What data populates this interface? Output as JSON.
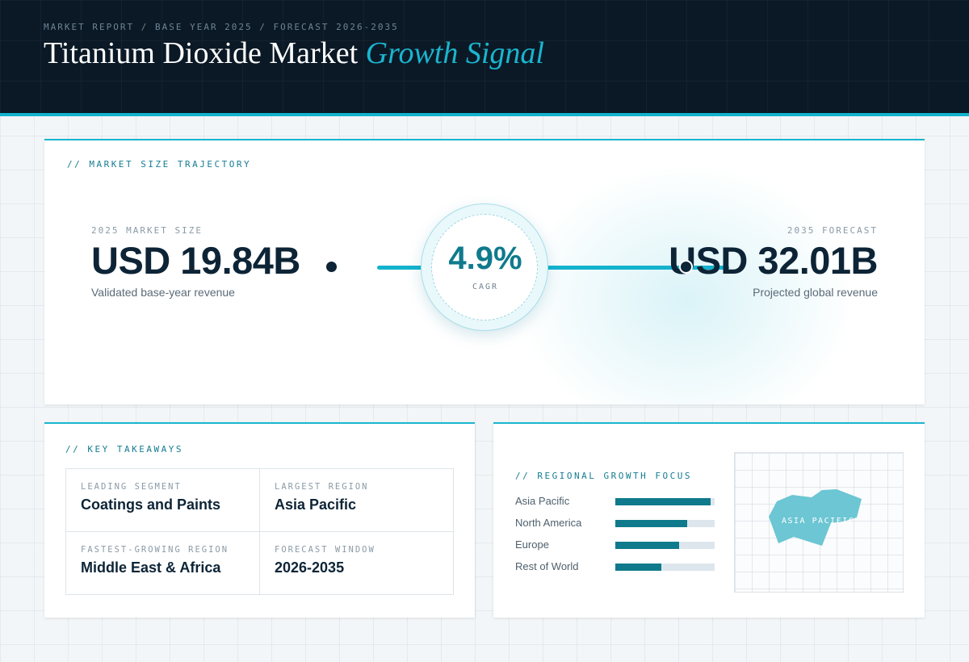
{
  "header": {
    "eyebrow": "MARKET REPORT / BASE YEAR 2025 / FORECAST 2026-2035",
    "title_main": "Titanium Dioxide Market",
    "title_accent": "Growth Signal",
    "accent_color": "#1ab5cf"
  },
  "trajectory": {
    "label": "// MARKET SIZE TRAJECTORY",
    "start": {
      "caption": "2025 MARKET SIZE",
      "value": "USD 19.84B",
      "description": "Validated base-year revenue"
    },
    "end": {
      "caption": "2035 FORECAST",
      "value": "USD 32.01B",
      "description": "Projected global revenue"
    },
    "cagr": {
      "value": "4.9%",
      "label": "CAGR"
    }
  },
  "takeaways": {
    "label": "// KEY TAKEAWAYS",
    "items": [
      {
        "label": "LEADING SEGMENT",
        "value": "Coatings and Paints"
      },
      {
        "label": "LARGEST REGION",
        "value": "Asia Pacific"
      },
      {
        "label": "FASTEST-GROWING REGION",
        "value": "Middle East & Africa"
      },
      {
        "label": "FORECAST WINDOW",
        "value": "2026-2035"
      }
    ]
  },
  "regional": {
    "label": "// REGIONAL GROWTH FOCUS",
    "bars": [
      {
        "name": "Asia Pacific",
        "level": 0.96
      },
      {
        "name": "North America",
        "level": 0.72
      },
      {
        "name": "Europe",
        "level": 0.64
      },
      {
        "name": "Rest of World",
        "level": 0.46
      }
    ],
    "map_label": "ASIA PACIFIC",
    "map_color": "#6cc6d3",
    "bar_color": "#0f7a8c"
  }
}
